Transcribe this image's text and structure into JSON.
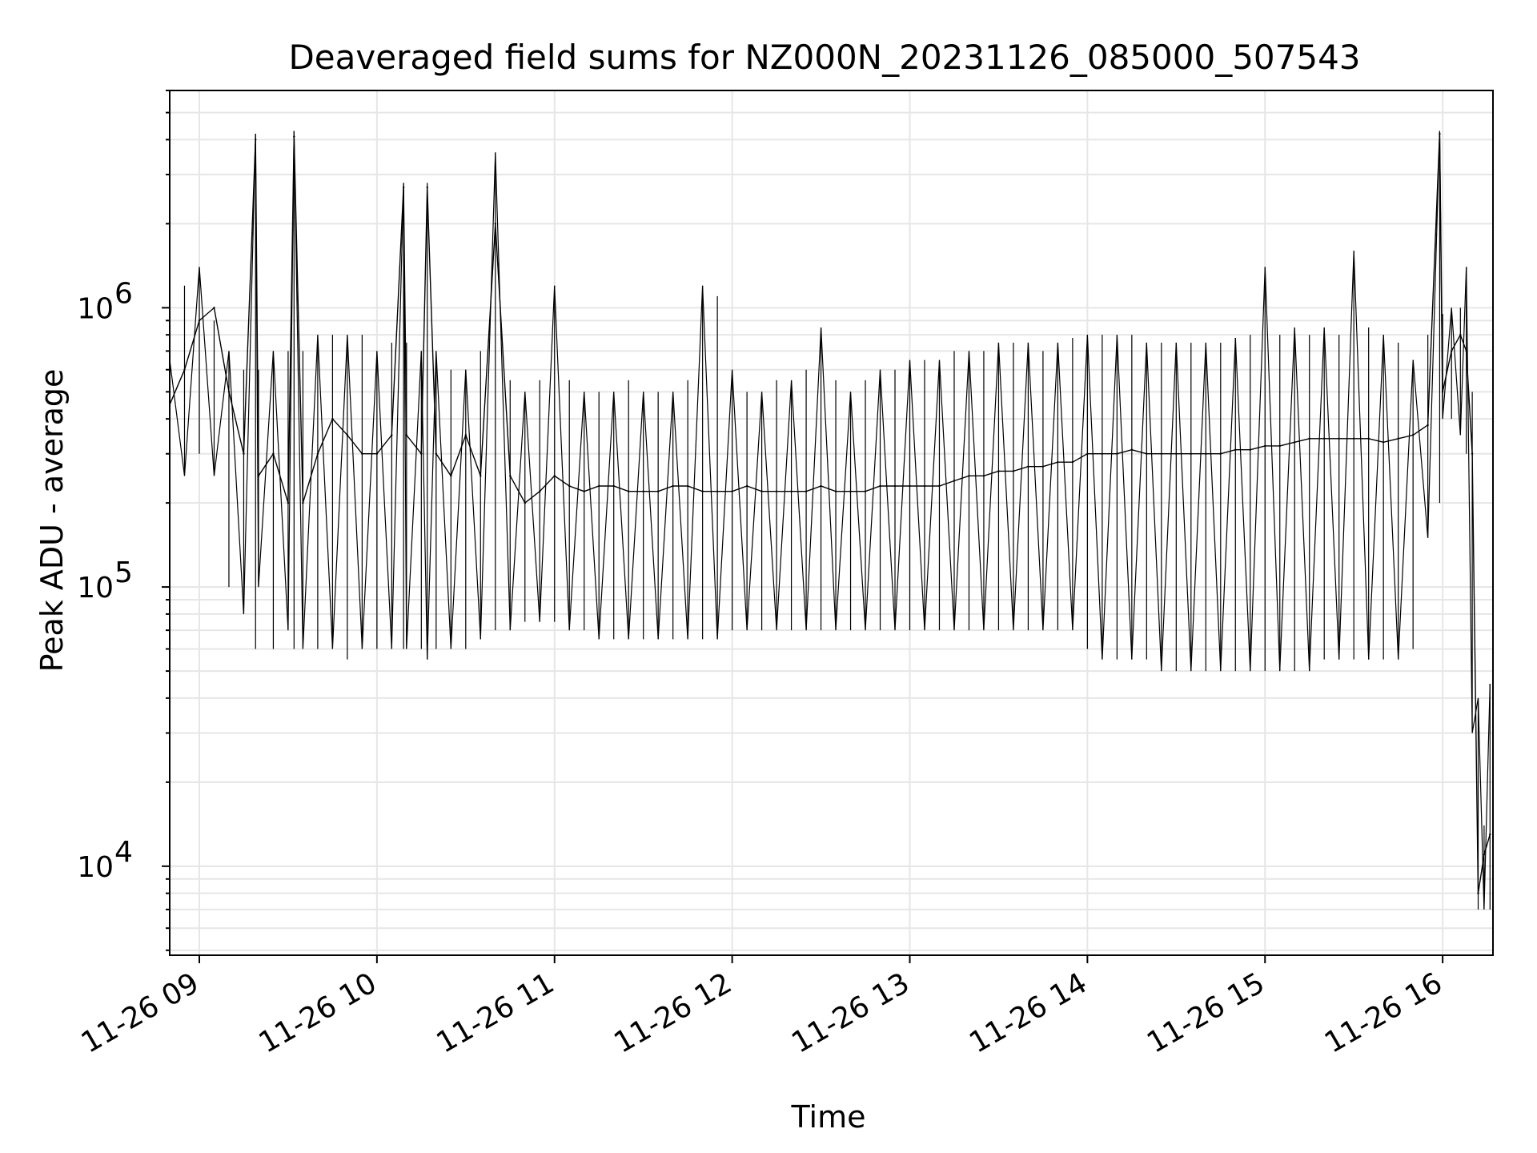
{
  "chart_data": {
    "type": "line",
    "title": "Deaveraged field sums for NZ000N_20231126_085000_507543",
    "xlabel": "Time",
    "ylabel": "Peak ADU - average",
    "yscale": "log",
    "ylim": [
      4800,
      6000000
    ],
    "xlim": [
      "2023-11-26 08:50",
      "2023-11-26 16:17"
    ],
    "x_ticks": [
      "11-26 09",
      "11-26 10",
      "11-26 11",
      "11-26 12",
      "11-26 13",
      "11-26 14",
      "11-26 15",
      "11-26 16"
    ],
    "y_ticks": [
      {
        "base": "10",
        "exp": "4",
        "value": 10000
      },
      {
        "base": "10",
        "exp": "5",
        "value": 100000
      },
      {
        "base": "10",
        "exp": "6",
        "value": 1000000
      }
    ],
    "grid": true,
    "line_color": "#000000",
    "grid_color": "#e6e6e6",
    "series": [
      {
        "name": "",
        "x": [
          "2023-11-26 08:50",
          "2023-11-26 08:55",
          "2023-11-26 09:00",
          "2023-11-26 09:05",
          "2023-11-26 09:10",
          "2023-11-26 09:15",
          "2023-11-26 09:19",
          "2023-11-26 09:20",
          "2023-11-26 09:25",
          "2023-11-26 09:30",
          "2023-11-26 09:32",
          "2023-11-26 09:35",
          "2023-11-26 09:40",
          "2023-11-26 09:45",
          "2023-11-26 09:50",
          "2023-11-26 09:55",
          "2023-11-26 10:00",
          "2023-11-26 10:05",
          "2023-11-26 10:09",
          "2023-11-26 10:10",
          "2023-11-26 10:15",
          "2023-11-26 10:17",
          "2023-11-26 10:20",
          "2023-11-26 10:25",
          "2023-11-26 10:30",
          "2023-11-26 10:35",
          "2023-11-26 10:40",
          "2023-11-26 10:45",
          "2023-11-26 10:50",
          "2023-11-26 10:55",
          "2023-11-26 11:00",
          "2023-11-26 11:05",
          "2023-11-26 11:10",
          "2023-11-26 11:15",
          "2023-11-26 11:20",
          "2023-11-26 11:25",
          "2023-11-26 11:30",
          "2023-11-26 11:35",
          "2023-11-26 11:40",
          "2023-11-26 11:45",
          "2023-11-26 11:50",
          "2023-11-26 11:55",
          "2023-11-26 12:00",
          "2023-11-26 12:05",
          "2023-11-26 12:10",
          "2023-11-26 12:15",
          "2023-11-26 12:20",
          "2023-11-26 12:25",
          "2023-11-26 12:30",
          "2023-11-26 12:35",
          "2023-11-26 12:40",
          "2023-11-26 12:45",
          "2023-11-26 12:50",
          "2023-11-26 12:55",
          "2023-11-26 13:00",
          "2023-11-26 13:05",
          "2023-11-26 13:10",
          "2023-11-26 13:15",
          "2023-11-26 13:20",
          "2023-11-26 13:25",
          "2023-11-26 13:30",
          "2023-11-26 13:35",
          "2023-11-26 13:40",
          "2023-11-26 13:45",
          "2023-11-26 13:50",
          "2023-11-26 13:55",
          "2023-11-26 14:00",
          "2023-11-26 14:05",
          "2023-11-26 14:10",
          "2023-11-26 14:15",
          "2023-11-26 14:20",
          "2023-11-26 14:25",
          "2023-11-26 14:30",
          "2023-11-26 14:35",
          "2023-11-26 14:40",
          "2023-11-26 14:45",
          "2023-11-26 14:50",
          "2023-11-26 14:55",
          "2023-11-26 15:00",
          "2023-11-26 15:05",
          "2023-11-26 15:10",
          "2023-11-26 15:15",
          "2023-11-26 15:20",
          "2023-11-26 15:25",
          "2023-11-26 15:30",
          "2023-11-26 15:35",
          "2023-11-26 15:40",
          "2023-11-26 15:45",
          "2023-11-26 15:50",
          "2023-11-26 15:55",
          "2023-11-26 15:59",
          "2023-11-26 16:00",
          "2023-11-26 16:03",
          "2023-11-26 16:06",
          "2023-11-26 16:08",
          "2023-11-26 16:10",
          "2023-11-26 16:12",
          "2023-11-26 16:14",
          "2023-11-26 16:16"
        ],
        "y": [
          450000,
          600000,
          900000,
          1000000,
          500000,
          300000,
          4000000,
          250000,
          300000,
          200000,
          4100000,
          200000,
          300000,
          400000,
          350000,
          300000,
          300000,
          350000,
          2700000,
          350000,
          300000,
          2700000,
          300000,
          250000,
          350000,
          250000,
          2000000,
          250000,
          200000,
          220000,
          250000,
          230000,
          220000,
          230000,
          230000,
          220000,
          220000,
          220000,
          230000,
          230000,
          220000,
          220000,
          220000,
          230000,
          220000,
          220000,
          220000,
          220000,
          230000,
          220000,
          220000,
          220000,
          230000,
          230000,
          230000,
          230000,
          230000,
          240000,
          250000,
          250000,
          260000,
          260000,
          270000,
          270000,
          280000,
          280000,
          300000,
          300000,
          300000,
          310000,
          300000,
          300000,
          300000,
          300000,
          300000,
          300000,
          310000,
          310000,
          320000,
          320000,
          330000,
          340000,
          340000,
          340000,
          340000,
          340000,
          330000,
          340000,
          350000,
          380000,
          4200000,
          500000,
          700000,
          800000,
          700000,
          300000,
          8000,
          11000,
          13000
        ],
        "y_min": [
          400000,
          250000,
          300000,
          250000,
          100000,
          80000,
          60000,
          100000,
          60000,
          70000,
          60000,
          60000,
          60000,
          60000,
          55000,
          60000,
          60000,
          60000,
          60000,
          60000,
          60000,
          55000,
          60000,
          60000,
          60000,
          65000,
          70000,
          70000,
          75000,
          75000,
          75000,
          70000,
          70000,
          65000,
          65000,
          65000,
          65000,
          65000,
          65000,
          65000,
          65000,
          65000,
          70000,
          70000,
          70000,
          70000,
          70000,
          70000,
          70000,
          70000,
          70000,
          70000,
          70000,
          70000,
          70000,
          70000,
          70000,
          70000,
          70000,
          70000,
          70000,
          70000,
          70000,
          70000,
          70000,
          70000,
          60000,
          55000,
          55000,
          55000,
          55000,
          50000,
          50000,
          50000,
          50000,
          50000,
          50000,
          50000,
          50000,
          50000,
          50000,
          50000,
          55000,
          55000,
          55000,
          55000,
          55000,
          55000,
          60000,
          150000,
          200000,
          400000,
          400000,
          350000,
          300000,
          30000,
          7000,
          7000,
          7000
        ],
        "y_max": [
          650000,
          1200000,
          1400000,
          900000,
          700000,
          600000,
          4200000,
          600000,
          700000,
          700000,
          4300000,
          700000,
          800000,
          800000,
          800000,
          800000,
          700000,
          750000,
          2800000,
          750000,
          700000,
          2800000,
          700000,
          600000,
          600000,
          700000,
          3600000,
          550000,
          500000,
          550000,
          1200000,
          550000,
          500000,
          500000,
          500000,
          550000,
          500000,
          500000,
          500000,
          550000,
          1200000,
          1100000,
          600000,
          500000,
          500000,
          550000,
          550000,
          600000,
          850000,
          550000,
          500000,
          550000,
          600000,
          600000,
          650000,
          650000,
          650000,
          700000,
          700000,
          700000,
          750000,
          750000,
          750000,
          700000,
          750000,
          780000,
          800000,
          800000,
          800000,
          800000,
          750000,
          750000,
          750000,
          750000,
          750000,
          750000,
          780000,
          800000,
          1400000,
          800000,
          850000,
          800000,
          850000,
          800000,
          1600000,
          850000,
          800000,
          750000,
          650000,
          800000,
          4300000,
          950000,
          1000000,
          1000000,
          1400000,
          500000,
          40000,
          14000,
          45000
        ]
      }
    ]
  }
}
